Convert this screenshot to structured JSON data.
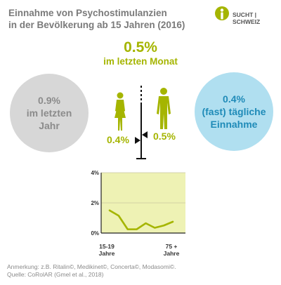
{
  "title": {
    "line1": "Einnahme von Psychostimulanzien",
    "line2": "in der Bevölkerung ab 15 Jahren (2016)"
  },
  "logo": {
    "text_left": "SUCHT",
    "text_right": "SCHWEIZ",
    "color": "#a5b500"
  },
  "center": {
    "value": "0.5%",
    "label": "im letzten Monat"
  },
  "left_circle": {
    "value": "0.9%",
    "line1": "im letzten",
    "line2": "Jahr"
  },
  "right_circle": {
    "value": "0.4%",
    "line1": "(fast) tägliche",
    "line2": "Einnahme"
  },
  "female_pct": "0.4%",
  "male_pct": "0.5%",
  "chart_data": {
    "type": "line",
    "yticks": [
      "4%",
      "2%",
      "0%"
    ],
    "ylim": [
      0,
      4
    ],
    "x_label_start": [
      "15-19",
      "Jahre"
    ],
    "x_label_end": [
      "75 +",
      "Jahre"
    ],
    "values": [
      1.5,
      1.15,
      0.25,
      0.25,
      0.65,
      0.35,
      0.5,
      0.75
    ]
  },
  "note": {
    "line1": "Anmerkung: z.B. Ritalin©, Medikinet©, Concerta©, Modasomi©.",
    "line2": "Quelle: CoRolAR (Gmel et al., 2018)"
  },
  "colors": {
    "accent": "#a5b500",
    "grey": "#8b8b8b",
    "blue": "#1f8bb8",
    "chart_bg": "#eef2b4"
  }
}
